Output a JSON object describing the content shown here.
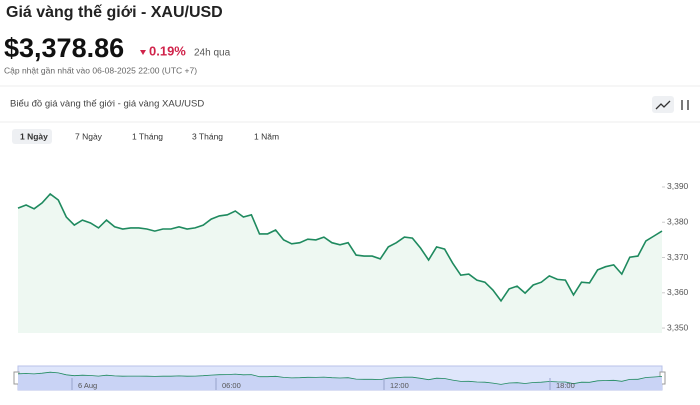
{
  "header": {
    "title": "Giá vàng thế giới - XAU/USD",
    "price": "$3,378.86",
    "change": "0.19%",
    "period": "24h qua",
    "updated": "Cập nhật gần nhất vào 06-08-2025 22:00 (UTC +7)"
  },
  "tabs": [
    "1 Ngày",
    "7 Ngày",
    "1 Tháng",
    "3 Tháng",
    "1 Năm"
  ],
  "navigator": {
    "labels": [
      "6 Aug",
      "06:00",
      "12:00",
      "18:00"
    ]
  },
  "chart_data": {
    "type": "line",
    "title": "Biểu đồ giá vàng thế giới - giá vàng XAU/USD",
    "series": [
      {
        "color": "#1f8a5f",
        "values": [
          3384.0,
          3384.9,
          3383.8,
          3385.5,
          3388.0,
          3386.3,
          3381.5,
          3379.2,
          3380.6,
          3379.8,
          3378.4,
          3380.6,
          3378.7,
          3378.1,
          3378.4,
          3378.4,
          3378.1,
          3377.5,
          3378.1,
          3378.1,
          3378.7,
          3378.1,
          3378.4,
          3379.2,
          3380.9,
          3381.8,
          3382.1,
          3383.2,
          3381.5,
          3382.1,
          3376.7,
          3376.7,
          3377.8,
          3375.0,
          3373.9,
          3374.2,
          3375.2,
          3375.0,
          3375.8,
          3374.2,
          3373.6,
          3374.2,
          3370.7,
          3370.4,
          3370.4,
          3369.6,
          3373.0,
          3374.2,
          3375.8,
          3375.5,
          3372.7,
          3369.3,
          3373.0,
          3372.4,
          3368.4,
          3365.0,
          3365.3,
          3363.6,
          3363.0,
          3360.8,
          3357.7,
          3361.1,
          3361.9,
          3359.9,
          3362.2,
          3363.0,
          3364.8,
          3363.8,
          3363.6,
          3359.4,
          3363.0,
          3362.8,
          3366.5,
          3367.4,
          3367.9,
          3365.3,
          3370.1,
          3370.4,
          3374.7,
          3376.1,
          3377.5
        ]
      }
    ],
    "ylim": [
      3348.6,
      3398.5
    ],
    "yticks": [
      {
        "value": 3350,
        "label": "3,350"
      },
      {
        "value": 3360,
        "label": "3,360"
      },
      {
        "value": 3370,
        "label": "3,370"
      },
      {
        "value": 3380,
        "label": "3,380"
      },
      {
        "value": 3390,
        "label": "3,390"
      }
    ]
  }
}
